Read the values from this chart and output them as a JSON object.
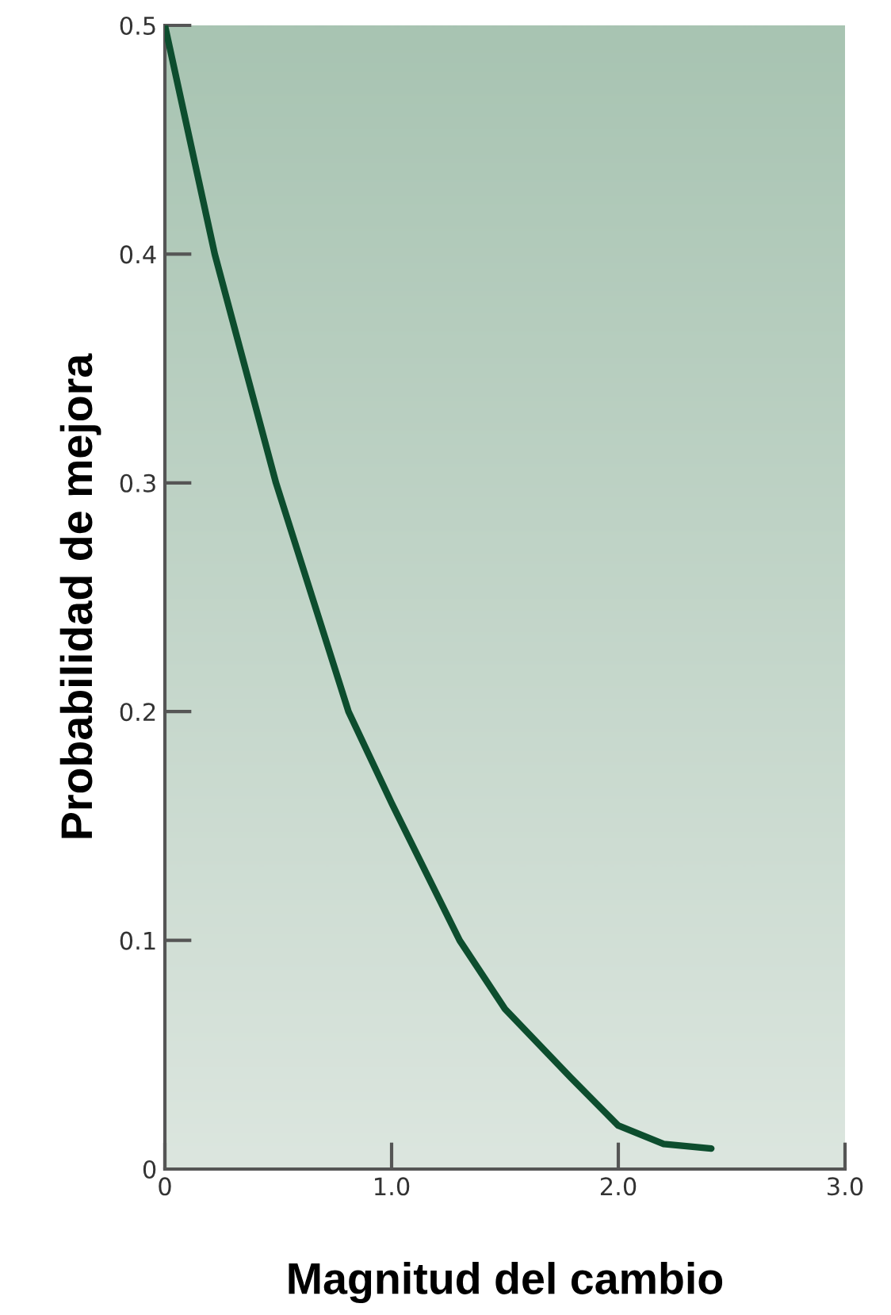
{
  "chart_data": {
    "type": "line",
    "xlabel": "Magnitud del cambio",
    "ylabel": "Probabilidad de mejora",
    "x": [
      0,
      0.22,
      0.49,
      0.81,
      1.0,
      1.3,
      1.5,
      1.79,
      2.0,
      2.2,
      2.41
    ],
    "series": [
      {
        "color": "#0d4d2e",
        "values": [
          0.5,
          0.4,
          0.3,
          0.2,
          0.16,
          0.1,
          0.07,
          0.04,
          0.019,
          0.011,
          0.009
        ]
      }
    ],
    "xlim": [
      0,
      3.0
    ],
    "ylim": [
      0,
      0.5
    ],
    "xticks": [
      0,
      {
        "value": 1,
        "label": "1.0"
      },
      {
        "value": 2,
        "label": "2.0"
      },
      {
        "value": 3,
        "label": "3.0"
      }
    ],
    "yticks": [
      0,
      0.1,
      0.2,
      0.3,
      0.4,
      0.5
    ],
    "grid": false,
    "legend": false,
    "marker": "none",
    "line_style": "solid"
  }
}
